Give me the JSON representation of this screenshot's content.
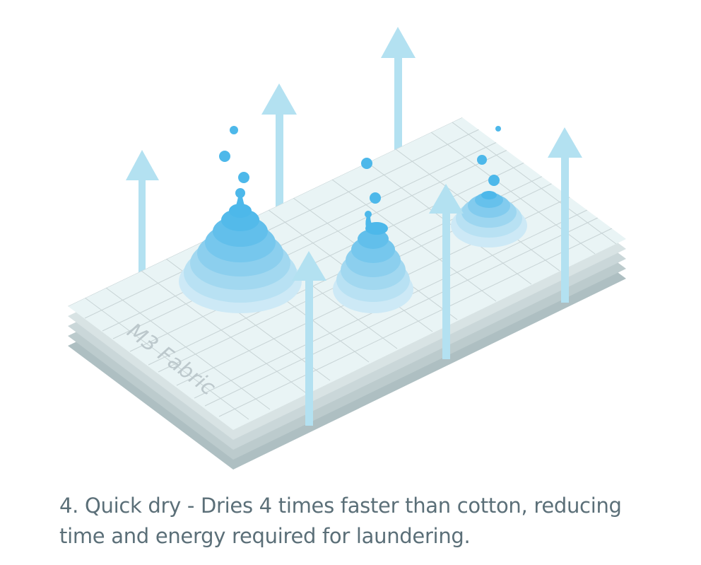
{
  "illustration": {
    "fabric_label": "M3 Fabric",
    "colors": {
      "fabric_top": "#e9f4f5",
      "fabric_layers": [
        "#aebfc2",
        "#bccbcd",
        "#cad7d9",
        "#d8e3e4"
      ],
      "grid_line": "#c7d3d5",
      "arrow": "#b3e1f1",
      "drop_dark": "#4db8ea",
      "drop_light": "#cde9f6"
    },
    "icons": [
      "evaporation-arrow-icon",
      "water-droplet-icon",
      "moisture-ripple-icon"
    ]
  },
  "caption": {
    "line1": "4. Quick dry - Dries 4 times faster than cotton, reducing",
    "line2": "time and energy required for laundering."
  }
}
